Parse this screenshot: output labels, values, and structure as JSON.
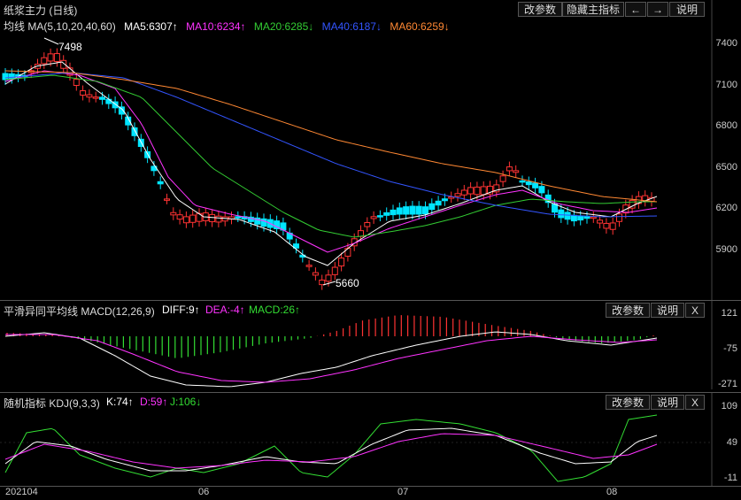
{
  "title": "纸浆主力 (日线)",
  "toolbar": {
    "params": "改参数",
    "hide_main": "隐藏主指标",
    "left": "←",
    "right": "→",
    "help": "说明"
  },
  "ma": {
    "label": "均线 MA(5,10,20,40,60)",
    "ma5": "MA5:6307↑",
    "ma10": "MA10:6234↑",
    "ma20": "MA20:6285↓",
    "ma40": "MA40:6187↓",
    "ma60": "MA60:6259↓",
    "high_label": "7498",
    "low_label": "5660",
    "ticks": [
      "7400",
      "7100",
      "6800",
      "6500",
      "6200",
      "5900"
    ]
  },
  "macd": {
    "label": "平滑异同平均线 MACD(12,26,9)",
    "diff": "DIFF:9↑",
    "dea": "DEA:-4↑",
    "macd": "MACD:26↑",
    "params": "改参数",
    "help": "说明",
    "close": "X",
    "ticks": [
      "121",
      "-75",
      "-271"
    ]
  },
  "kdj": {
    "label": "随机指标 KDJ(9,3,3)",
    "k": "K:74↑",
    "d": "D:59↑",
    "j": "J:106↓",
    "params": "改参数",
    "help": "说明",
    "close": "X",
    "ticks": [
      "109",
      "49",
      "-11"
    ]
  },
  "xaxis": [
    "202104",
    "06",
    "07",
    "08"
  ],
  "colors": {
    "up": "#ff3333",
    "down": "#00e5ff",
    "ma5": "#ffffff",
    "ma10": "#ff33ff",
    "ma20": "#33cc33",
    "ma40": "#3355ff",
    "ma60": "#ff8833",
    "dea": "#ff33ff",
    "macd": "#33dd33",
    "j": "#33dd33",
    "d": "#ff33ff"
  }
}
